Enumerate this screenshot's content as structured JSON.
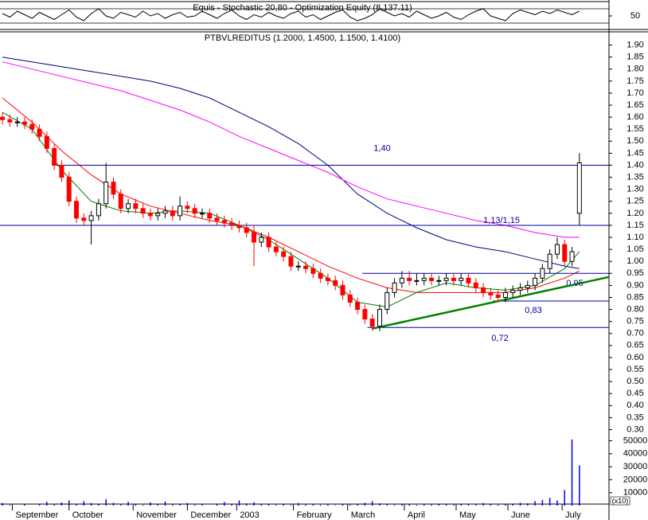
{
  "chart_data": [
    {
      "type": "line",
      "title": "Equis - Stochastic 20,80 - Optimization Equity (8,137.11)",
      "x": [
        0,
        3,
        6,
        9,
        12,
        15,
        18,
        21,
        24,
        27,
        30,
        33,
        36,
        39,
        42,
        45,
        48,
        51,
        54,
        57,
        60,
        63,
        66,
        69,
        72,
        75,
        78,
        81,
        84,
        87,
        90,
        93,
        96,
        99,
        102,
        105,
        108,
        111,
        114,
        117,
        120,
        123,
        126,
        129,
        132,
        135,
        138,
        141,
        144,
        147,
        150,
        153,
        156,
        159,
        162,
        165,
        168,
        171,
        174,
        177,
        180,
        183,
        186,
        189,
        192,
        195,
        198,
        201,
        204,
        207,
        210,
        213,
        216,
        219,
        222,
        225,
        228,
        231,
        234
      ],
      "values": [
        60,
        45,
        70,
        55,
        40,
        65,
        50,
        35,
        55,
        75,
        45,
        30,
        60,
        80,
        50,
        40,
        65,
        55,
        45,
        70,
        50,
        60,
        40,
        55,
        65,
        45,
        50,
        70,
        55,
        40,
        60,
        75,
        50,
        35,
        55,
        45,
        65,
        50,
        40,
        60,
        70,
        45,
        55,
        35,
        50,
        65,
        75,
        45,
        30,
        40,
        55,
        80,
        65,
        50,
        60,
        45,
        70,
        55,
        40,
        50,
        65,
        45,
        35,
        55,
        70,
        80,
        50,
        40,
        30,
        60,
        75,
        65,
        55,
        70,
        60,
        75,
        65,
        55,
        70
      ],
      "color": "#000000",
      "xlim": [
        -1,
        246
      ],
      "ylim": [
        0,
        100
      ],
      "yticks": [
        50
      ],
      "reference_lines": [
        20,
        80
      ]
    },
    {
      "type": "candlestick",
      "title": "PTBVLREDITUS (1.2000, 1.4500, 1.1500, 1.4100)",
      "x": [
        0,
        3,
        6,
        9,
        12,
        15,
        18,
        21,
        24,
        27,
        30,
        33,
        36,
        39,
        42,
        45,
        48,
        51,
        54,
        57,
        60,
        63,
        66,
        69,
        72,
        75,
        78,
        81,
        84,
        87,
        90,
        93,
        96,
        99,
        102,
        105,
        108,
        111,
        114,
        117,
        120,
        123,
        126,
        129,
        132,
        135,
        138,
        141,
        144,
        147,
        150,
        153,
        156,
        159,
        162,
        165,
        168,
        171,
        174,
        177,
        180,
        183,
        186,
        189,
        192,
        195,
        198,
        201,
        204,
        207,
        210,
        213,
        216,
        219,
        222,
        225,
        228,
        231,
        234
      ],
      "open": [
        1.6,
        1.59,
        1.58,
        1.58,
        1.57,
        1.55,
        1.52,
        1.47,
        1.4,
        1.35,
        1.25,
        1.18,
        1.17,
        1.19,
        1.24,
        1.33,
        1.28,
        1.22,
        1.24,
        1.22,
        1.2,
        1.19,
        1.2,
        1.21,
        1.19,
        1.23,
        1.22,
        1.2,
        1.2,
        1.18,
        1.17,
        1.16,
        1.15,
        1.14,
        1.12,
        1.08,
        1.1,
        1.06,
        1.04,
        1.02,
        0.98,
        0.98,
        0.97,
        0.95,
        0.93,
        0.92,
        0.9,
        0.86,
        0.83,
        0.8,
        0.76,
        0.73,
        0.8,
        0.87,
        0.91,
        0.93,
        0.92,
        0.92,
        0.93,
        0.92,
        0.92,
        0.93,
        0.92,
        0.93,
        0.91,
        0.89,
        0.87,
        0.86,
        0.85,
        0.87,
        0.88,
        0.89,
        0.9,
        0.93,
        0.97,
        1.03,
        1.07,
        1.0,
        1.2
      ],
      "high": [
        1.62,
        1.61,
        1.6,
        1.6,
        1.59,
        1.57,
        1.54,
        1.49,
        1.42,
        1.37,
        1.27,
        1.2,
        1.21,
        1.26,
        1.41,
        1.35,
        1.3,
        1.26,
        1.26,
        1.24,
        1.22,
        1.22,
        1.23,
        1.23,
        1.27,
        1.25,
        1.24,
        1.22,
        1.22,
        1.2,
        1.19,
        1.18,
        1.17,
        1.16,
        1.15,
        1.12,
        1.12,
        1.08,
        1.06,
        1.04,
        1.0,
        1.0,
        0.99,
        0.97,
        0.95,
        0.94,
        0.92,
        0.88,
        0.85,
        0.82,
        0.78,
        0.82,
        0.89,
        0.93,
        0.96,
        0.96,
        0.95,
        0.95,
        0.95,
        0.94,
        0.95,
        0.95,
        0.95,
        0.95,
        0.93,
        0.91,
        0.89,
        0.88,
        0.89,
        0.9,
        0.91,
        0.92,
        0.95,
        0.99,
        1.05,
        1.1,
        1.09,
        1.06,
        1.45
      ],
      "low": [
        1.57,
        1.56,
        1.56,
        1.55,
        1.53,
        1.5,
        1.45,
        1.38,
        1.33,
        1.23,
        1.16,
        1.15,
        1.07,
        1.17,
        1.22,
        1.26,
        1.2,
        1.2,
        1.2,
        1.18,
        1.17,
        1.17,
        1.18,
        1.17,
        1.17,
        1.2,
        1.18,
        1.18,
        1.16,
        1.15,
        1.14,
        1.13,
        1.12,
        1.1,
        0.98,
        1.06,
        1.04,
        1.02,
        1.0,
        0.96,
        0.96,
        0.95,
        0.93,
        0.91,
        0.9,
        0.88,
        0.84,
        0.81,
        0.78,
        0.74,
        0.71,
        0.71,
        0.78,
        0.85,
        0.89,
        0.9,
        0.9,
        0.9,
        0.9,
        0.9,
        0.9,
        0.9,
        0.9,
        0.89,
        0.87,
        0.85,
        0.84,
        0.83,
        0.83,
        0.85,
        0.86,
        0.87,
        0.88,
        0.91,
        0.95,
        1.01,
        0.98,
        0.98,
        1.15
      ],
      "close": [
        1.59,
        1.58,
        1.58,
        1.57,
        1.55,
        1.52,
        1.47,
        1.4,
        1.35,
        1.25,
        1.18,
        1.17,
        1.19,
        1.24,
        1.33,
        1.28,
        1.22,
        1.24,
        1.22,
        1.2,
        1.19,
        1.2,
        1.21,
        1.19,
        1.23,
        1.22,
        1.2,
        1.2,
        1.18,
        1.17,
        1.16,
        1.15,
        1.14,
        1.12,
        1.08,
        1.1,
        1.06,
        1.04,
        1.02,
        0.98,
        0.98,
        0.97,
        0.95,
        0.93,
        0.92,
        0.9,
        0.86,
        0.83,
        0.8,
        0.76,
        0.73,
        0.8,
        0.87,
        0.91,
        0.93,
        0.92,
        0.92,
        0.93,
        0.92,
        0.92,
        0.93,
        0.92,
        0.93,
        0.91,
        0.89,
        0.87,
        0.86,
        0.85,
        0.87,
        0.88,
        0.89,
        0.9,
        0.93,
        0.97,
        1.03,
        1.07,
        1.0,
        1.04,
        1.41
      ],
      "up_color": "#ffffff",
      "down_color": "#ff0000",
      "xlim": [
        -1,
        246
      ],
      "ylim": [
        0.275,
        1.955
      ],
      "yticks": [
        {
          "value": 1.9,
          "label": "1.90"
        },
        1.85,
        {
          "value": 1.8,
          "label": "1.80"
        },
        1.75,
        {
          "value": 1.7,
          "label": "1.70"
        },
        1.65,
        {
          "value": 1.6,
          "label": "1.60"
        },
        1.55,
        {
          "value": 1.5,
          "label": "1.50"
        },
        1.45,
        {
          "value": 1.4,
          "label": "1.40"
        },
        1.35,
        {
          "value": 1.3,
          "label": "1.30"
        },
        1.25,
        {
          "value": 1.2,
          "label": "1.20"
        },
        1.15,
        {
          "value": 1.1,
          "label": "1.10"
        },
        1.05,
        {
          "value": 1.0,
          "label": "1.00"
        },
        0.95,
        {
          "value": 0.9,
          "label": "0.90"
        },
        0.85,
        {
          "value": 0.8,
          "label": "0.80"
        },
        0.75,
        {
          "value": 0.7,
          "label": "0.70"
        },
        0.65,
        {
          "value": 0.6,
          "label": "0.60"
        },
        0.55,
        {
          "value": 0.5,
          "label": "0.50"
        },
        0.45,
        {
          "value": 0.4,
          "label": "0.40"
        },
        0.35,
        {
          "value": 0.3,
          "label": "0.30"
        }
      ],
      "overlays": {
        "x": [
          0,
          12,
          24,
          36,
          48,
          60,
          72,
          84,
          96,
          108,
          120,
          132,
          144,
          156,
          168,
          180,
          192,
          204,
          216,
          228,
          234
        ],
        "series": [
          {
            "color": "#000080",
            "values": [
              1.85,
              1.83,
              1.81,
              1.79,
              1.77,
              1.75,
              1.72,
              1.68,
              1.62,
              1.56,
              1.49,
              1.4,
              1.28,
              1.2,
              1.14,
              1.09,
              1.06,
              1.04,
              1.01,
              0.98,
              0.97
            ]
          },
          {
            "color": "#ff00ff",
            "values": [
              1.83,
              1.8,
              1.77,
              1.74,
              1.71,
              1.67,
              1.63,
              1.58,
              1.52,
              1.47,
              1.42,
              1.37,
              1.31,
              1.26,
              1.23,
              1.2,
              1.17,
              1.15,
              1.12,
              1.1,
              1.1
            ]
          },
          {
            "color": "#ff0000",
            "values": [
              1.68,
              1.58,
              1.46,
              1.36,
              1.28,
              1.23,
              1.2,
              1.17,
              1.15,
              1.1,
              1.04,
              0.98,
              0.93,
              0.89,
              0.87,
              0.87,
              0.87,
              0.87,
              0.89,
              0.93,
              0.96
            ]
          },
          {
            "color": "#008000",
            "values": [
              1.62,
              1.55,
              1.38,
              1.25,
              1.21,
              1.2,
              1.21,
              1.2,
              1.15,
              1.09,
              1.01,
              0.93,
              0.83,
              0.81,
              0.87,
              0.91,
              0.89,
              0.88,
              0.9,
              0.97,
              1.04
            ]
          }
        ]
      },
      "levels": [
        {
          "value": 1.4,
          "label": "1,40",
          "from": 20
        },
        {
          "value": 1.15,
          "label": "1,13/1,15",
          "from": -1
        },
        {
          "value": 0.95,
          "label": "0,95",
          "from": 146
        },
        {
          "value": 0.835,
          "label": "0,83",
          "from": 199
        },
        {
          "value": 0.725,
          "label": "0,72",
          "from": 148
        }
      ],
      "level_color": "#0000a0",
      "trendline": {
        "x": [
          150,
          246
        ],
        "y": [
          0.72,
          0.935
        ],
        "color": "#008000"
      }
    },
    {
      "type": "bar",
      "x": [
        0,
        3,
        6,
        9,
        12,
        15,
        18,
        21,
        24,
        27,
        30,
        33,
        36,
        39,
        42,
        45,
        48,
        51,
        54,
        57,
        60,
        63,
        66,
        69,
        72,
        75,
        78,
        81,
        84,
        87,
        90,
        93,
        96,
        99,
        102,
        105,
        108,
        111,
        114,
        117,
        120,
        123,
        126,
        129,
        132,
        135,
        138,
        141,
        144,
        147,
        150,
        153,
        156,
        159,
        162,
        165,
        168,
        171,
        174,
        177,
        180,
        183,
        186,
        189,
        192,
        195,
        198,
        201,
        204,
        207,
        210,
        213,
        216,
        219,
        222,
        225,
        228,
        231,
        234
      ],
      "values": [
        2000,
        500,
        0,
        1000,
        0,
        1500,
        3000,
        800,
        2500,
        4000,
        1200,
        3500,
        2000,
        1000,
        5000,
        2200,
        800,
        3000,
        1500,
        600,
        2500,
        1000,
        3200,
        800,
        1500,
        2000,
        700,
        1200,
        0,
        900,
        2800,
        1400,
        4000,
        1800,
        2600,
        900,
        1500,
        700,
        1100,
        500,
        2000,
        800,
        1300,
        600,
        900,
        400,
        1200,
        700,
        1500,
        2200,
        3500,
        1800,
        1000,
        700,
        1500,
        900,
        600,
        1200,
        800,
        1000,
        1400,
        700,
        900,
        1100,
        800,
        2000,
        1300,
        700,
        1600,
        1000,
        2200,
        1800,
        3500,
        4500,
        6000,
        4000,
        12000,
        51000,
        31000
      ],
      "color": "#0000ff",
      "unit_label": "(x10)",
      "xlim": [
        -1,
        246
      ],
      "ylim": [
        0,
        54000
      ],
      "yticks": [
        10000,
        20000,
        30000,
        40000,
        50000
      ],
      "xticks": [
        {
          "value": 4,
          "label": "September"
        },
        {
          "value": 27,
          "label": "October"
        },
        {
          "value": 53,
          "label": "November"
        },
        {
          "value": 75,
          "label": "December"
        },
        {
          "value": 95,
          "label": "2003"
        },
        {
          "value": 118,
          "label": "February"
        },
        {
          "value": 140,
          "label": "March"
        },
        {
          "value": 163,
          "label": "April"
        },
        {
          "value": 184,
          "label": "May"
        },
        {
          "value": 205,
          "label": "June"
        },
        {
          "value": 227,
          "label": "July"
        }
      ]
    }
  ]
}
